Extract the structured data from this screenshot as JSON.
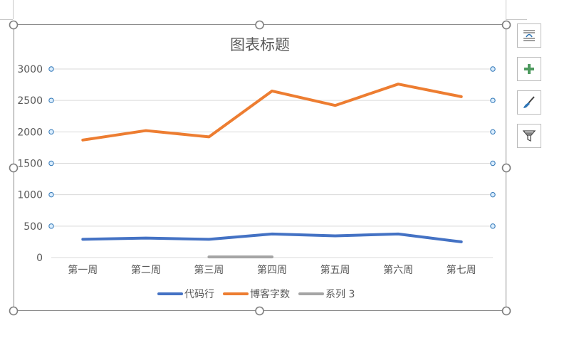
{
  "chart_data": {
    "type": "line",
    "title": "图表标题",
    "categories": [
      "第一周",
      "第二周",
      "第三周",
      "第四周",
      "第五周",
      "第六周",
      "第七周"
    ],
    "series": [
      {
        "name": "代码行",
        "color": "#4472c4",
        "values": [
          290,
          310,
          290,
          375,
          345,
          375,
          250
        ]
      },
      {
        "name": "博客字数",
        "color": "#ed7d31",
        "values": [
          1870,
          2020,
          1920,
          2650,
          2420,
          2760,
          2560
        ]
      },
      {
        "name": "系列 3",
        "color": "#a5a5a5",
        "values": [
          0,
          null,
          10,
          10,
          null,
          null,
          null
        ]
      }
    ],
    "ylim": [
      0,
      3000
    ],
    "yticks": [
      0,
      500,
      1000,
      1500,
      2000,
      2500,
      3000
    ],
    "ytick_labels": [
      "0",
      "500",
      "1000",
      "1500",
      "2000",
      "2500",
      "3000"
    ],
    "grid": true,
    "legend": "bottom"
  },
  "toolbar": {
    "layout_icon": "chart-layout-icon",
    "elements_icon": "chart-elements-plus-icon",
    "styles_icon": "chart-styles-brush-icon",
    "filter_icon": "chart-filter-icon"
  }
}
